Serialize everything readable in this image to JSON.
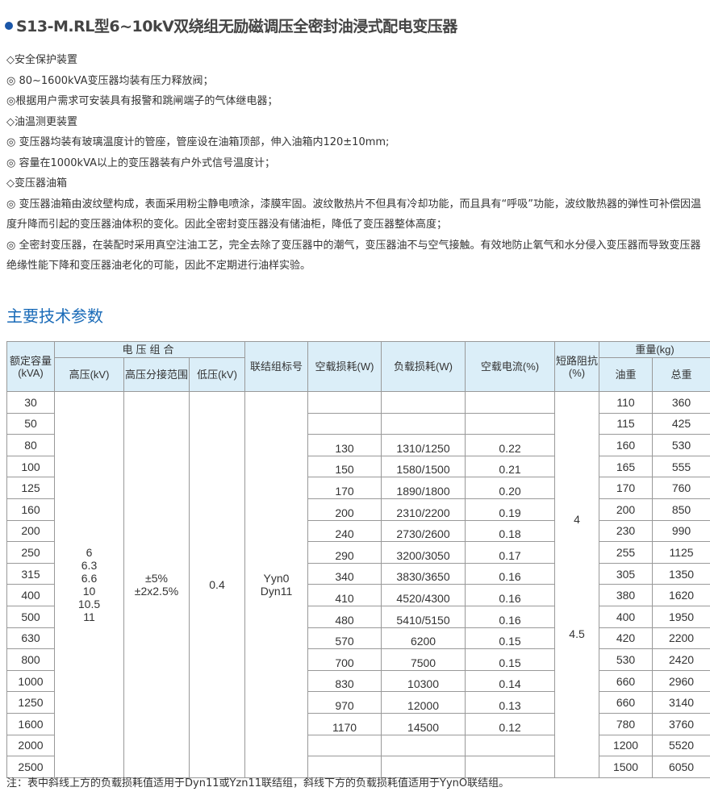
{
  "title": "S13-M.RL型6~10kV双绕组无励磁调压全密封油浸式配电变压器",
  "accent": "#1a56a8",
  "sections": [
    {
      "heading": "◇安全保护装置",
      "items": [
        "◎ 80~1600kVA变压器均装有压力释放阀；",
        "◎根据用户需求可安装具有报警和跳闸端子的气体继电器；"
      ]
    },
    {
      "heading": "◇油温测更装置",
      "items": [
        "◎ 变压器均装有玻璃温度计的管座，管座设在油箱顶部，伸入油箱内120±10mm;",
        "◎ 容量在1000kVA以上的变压器装有户外式信号温度计；"
      ]
    },
    {
      "heading": "◇变压器油箱",
      "items": [
        "◎ 变压器油箱由波纹壁构成，表面采用粉尘静电喷涂，漆膜牢固。波纹散热片不但具有冷却功能，而且具有“呼吸”功能，波纹散热器的弹性可补偿因温度升降而引起的变压器油体积的变化。因此全密封变压器没有储油柜，降低了变压器整体高度；",
        "◎ 全密封变压器，在装配时采用真空注油工艺，完全去除了变压器中的潮气，变压器油不与空气接触。有效地防止氧气和水分侵入变压器而导致变压器绝缘性能下降和变压器油老化的可能，因此不定期进行油样实验。"
      ]
    }
  ],
  "params_title": "主要技术参数",
  "table": {
    "headers": {
      "capacity": "额定容量(kVA)",
      "voltage_group": "电压组合",
      "hv": "高压(kV)",
      "tap": "高压分接范围",
      "lv": "低压(kV)",
      "vector": "联结组标号",
      "noload_loss": "空载损耗(W)",
      "load_loss": "负载损耗(W)",
      "noload_current": "空载电流(%)",
      "impedance": "短路阻抗(%)",
      "weight": "重量(kg)",
      "oil": "油重",
      "total": "总重"
    },
    "hv_values": "6\n6.3\n6.6\n10\n10.5\n11",
    "tap_values": "±5%\n±2x2.5%",
    "lv_value": "0.4",
    "vector_values": "Yyn0\nDyn11",
    "impedance_low": "4",
    "impedance_high": "4.5",
    "rows": [
      [
        "30",
        "",
        "",
        "",
        "110",
        "360"
      ],
      [
        "50",
        "",
        "",
        "",
        "115",
        "425"
      ],
      [
        "80",
        "130",
        "1310/1250",
        "0.22",
        "160",
        "530"
      ],
      [
        "100",
        "150",
        "1580/1500",
        "0.21",
        "165",
        "555"
      ],
      [
        "125",
        "170",
        "1890/1800",
        "0.20",
        "170",
        "760"
      ],
      [
        "160",
        "200",
        "2310/2200",
        "0.19",
        "200",
        "850"
      ],
      [
        "200",
        "240",
        "2730/2600",
        "0.18",
        "230",
        "990"
      ],
      [
        "250",
        "290",
        "3200/3050",
        "0.17",
        "255",
        "1125"
      ],
      [
        "315",
        "340",
        "3830/3650",
        "0.16",
        "305",
        "1350"
      ],
      [
        "400",
        "410",
        "4520/4300",
        "0.16",
        "380",
        "1620"
      ],
      [
        "500",
        "480",
        "5410/5150",
        "0.16",
        "400",
        "1950"
      ],
      [
        "630",
        "570",
        "6200",
        "0.15",
        "420",
        "2200"
      ],
      [
        "800",
        "700",
        "7500",
        "0.15",
        "530",
        "2420"
      ],
      [
        "1000",
        "830",
        "10300",
        "0.14",
        "660",
        "2960"
      ],
      [
        "1250",
        "970",
        "12000",
        "0.13",
        "660",
        "3140"
      ],
      [
        "1600",
        "1170",
        "14500",
        "0.12",
        "780",
        "3760"
      ],
      [
        "2000",
        "",
        "",
        "",
        "1200",
        "5520"
      ],
      [
        "2500",
        "",
        "",
        "",
        "1500",
        "6050"
      ]
    ]
  },
  "note": "注：表中斜线上方的负载损耗值适用于Dyn11或Yzn11联结组，斜线下方的负载损耗值适用于YynO联结组。"
}
